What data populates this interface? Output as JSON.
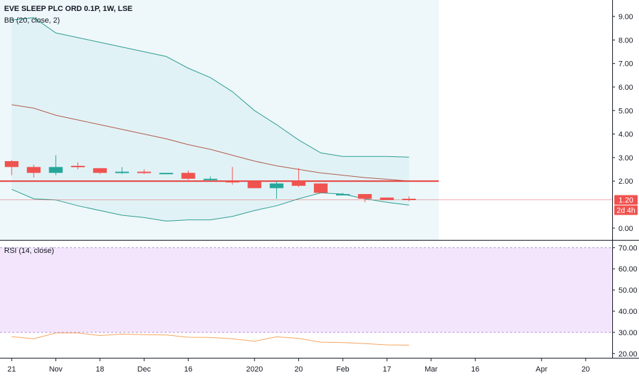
{
  "header": {
    "symbol_title": "EVE SLEEP PLC ORD 0.1P, 1W, LSE",
    "bb_label": "BB (20, close, 2)",
    "rsi_label": "RSI (14, close)"
  },
  "price_tag": {
    "value": "1.20",
    "countdown": "2d 4h"
  },
  "colors": {
    "up": "#26a69a",
    "down": "#ef5350",
    "bb_band": "#2a9d8f",
    "bb_basis": "#b05a4a",
    "bb_fill": "#e3f2f6",
    "rsi_line": "#f5a35c",
    "rsi_band": "#f1e3fb",
    "rsi_edge": "#9c6ec8",
    "hline": "#e53935",
    "grid_border": "#131722"
  },
  "chart_data": [
    {
      "type": "candlestick",
      "title": "EVE SLEEP PLC ORD 0.1P, 1W, LSE",
      "ylim": [
        -0.5,
        9.7
      ],
      "y_ticks": [
        "9.00",
        "8.00",
        "7.00",
        "6.00",
        "5.00",
        "4.00",
        "3.00",
        "2.00",
        "0.00"
      ],
      "x_ticks": [
        {
          "label": "21",
          "x": 0
        },
        {
          "label": "Nov",
          "x": 2
        },
        {
          "label": "18",
          "x": 4
        },
        {
          "label": "Dec",
          "x": 6
        },
        {
          "label": "16",
          "x": 8
        },
        {
          "label": "2020",
          "x": 11
        },
        {
          "label": "20",
          "x": 13
        },
        {
          "label": "Feb",
          "x": 15
        },
        {
          "label": "17",
          "x": 17
        },
        {
          "label": "Mar",
          "x": 19
        },
        {
          "label": "16",
          "x": 21
        },
        {
          "label": "Apr",
          "x": 24
        },
        {
          "label": "20",
          "x": 26
        }
      ],
      "candles": [
        {
          "x": 0,
          "o": 2.85,
          "h": 2.9,
          "l": 2.25,
          "c": 2.6
        },
        {
          "x": 1,
          "o": 2.6,
          "h": 2.7,
          "l": 2.15,
          "c": 2.35
        },
        {
          "x": 2,
          "o": 2.35,
          "h": 3.1,
          "l": 2.25,
          "c": 2.6
        },
        {
          "x": 3,
          "o": 2.65,
          "h": 2.8,
          "l": 2.5,
          "c": 2.6
        },
        {
          "x": 4,
          "o": 2.55,
          "h": 2.55,
          "l": 2.3,
          "c": 2.35
        },
        {
          "x": 5,
          "o": 2.35,
          "h": 2.6,
          "l": 2.3,
          "c": 2.4
        },
        {
          "x": 6,
          "o": 2.4,
          "h": 2.5,
          "l": 2.3,
          "c": 2.35
        },
        {
          "x": 7,
          "o": 2.3,
          "h": 2.35,
          "l": 2.3,
          "c": 2.35
        },
        {
          "x": 8,
          "o": 2.35,
          "h": 2.45,
          "l": 2.05,
          "c": 2.1
        },
        {
          "x": 9,
          "o": 2.05,
          "h": 2.2,
          "l": 2.0,
          "c": 2.1
        },
        {
          "x": 10,
          "o": 2.0,
          "h": 2.6,
          "l": 1.85,
          "c": 1.95
        },
        {
          "x": 11,
          "o": 2.0,
          "h": 2.0,
          "l": 1.7,
          "c": 1.7
        },
        {
          "x": 12,
          "o": 1.7,
          "h": 2.0,
          "l": 1.25,
          "c": 1.9
        },
        {
          "x": 13,
          "o": 2.0,
          "h": 2.55,
          "l": 1.75,
          "c": 1.8
        },
        {
          "x": 14,
          "o": 1.9,
          "h": 1.9,
          "l": 1.5,
          "c": 1.5
        },
        {
          "x": 15,
          "o": 1.45,
          "h": 1.5,
          "l": 1.4,
          "c": 1.45
        },
        {
          "x": 16,
          "o": 1.45,
          "h": 1.45,
          "l": 1.1,
          "c": 1.25
        },
        {
          "x": 17,
          "o": 1.3,
          "h": 1.3,
          "l": 1.2,
          "c": 1.2
        },
        {
          "x": 18,
          "o": 1.25,
          "h": 1.35,
          "l": 1.15,
          "c": 1.2
        }
      ],
      "bb_upper": [
        8.85,
        8.95,
        8.3,
        8.1,
        7.9,
        7.7,
        7.5,
        7.3,
        6.8,
        6.4,
        5.8,
        5.0,
        4.4,
        3.75,
        3.2,
        3.05,
        3.05,
        3.05,
        3.02
      ],
      "bb_basis": [
        5.25,
        5.1,
        4.8,
        4.6,
        4.4,
        4.2,
        4.0,
        3.8,
        3.55,
        3.35,
        3.1,
        2.85,
        2.65,
        2.5,
        2.35,
        2.25,
        2.15,
        2.08,
        2.0
      ],
      "bb_lower": [
        1.65,
        1.25,
        1.2,
        0.95,
        0.75,
        0.55,
        0.45,
        0.3,
        0.35,
        0.35,
        0.5,
        0.75,
        0.95,
        1.25,
        1.5,
        1.45,
        1.25,
        1.1,
        0.98
      ],
      "hline": 2.0,
      "last_price": 1.2
    },
    {
      "type": "line",
      "title": "RSI (14, close)",
      "ylim": [
        18,
        73
      ],
      "y_ticks": [
        "70.00",
        "60.00",
        "50.00",
        "40.00",
        "30.00",
        "20.00"
      ],
      "band": [
        30,
        70
      ],
      "values": [
        28.0,
        27.0,
        29.7,
        29.7,
        28.5,
        29.2,
        28.9,
        28.8,
        27.7,
        27.6,
        27.0,
        25.8,
        27.9,
        27.2,
        25.4,
        25.2,
        24.7,
        24.1,
        24.0
      ]
    }
  ]
}
